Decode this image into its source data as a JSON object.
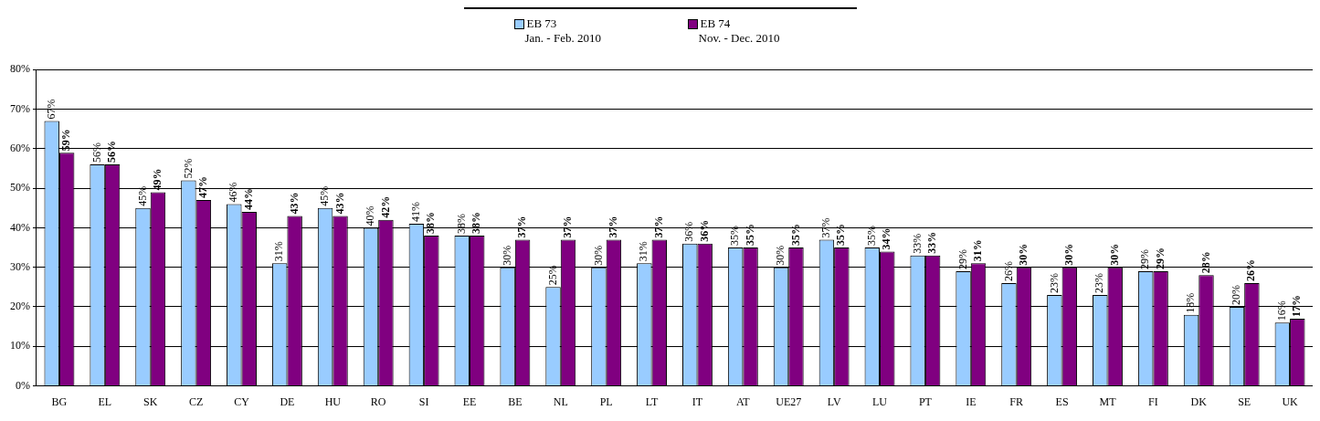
{
  "chart_data": {
    "type": "bar",
    "categories": [
      "BG",
      "EL",
      "SK",
      "CZ",
      "CY",
      "DE",
      "HU",
      "RO",
      "SI",
      "EE",
      "BE",
      "NL",
      "PL",
      "LT",
      "IT",
      "AT",
      "UE27",
      "LV",
      "LU",
      "PT",
      "IE",
      "FR",
      "ES",
      "MT",
      "FI",
      "DK",
      "SE",
      "UK"
    ],
    "series": [
      {
        "name": "EB 73",
        "color": "#99ccff",
        "values": [
          67,
          56,
          45,
          52,
          46,
          31,
          45,
          40,
          41,
          38,
          30,
          25,
          30,
          31,
          36,
          35,
          30,
          37,
          35,
          33,
          29,
          26,
          23,
          23,
          29,
          18,
          20,
          16
        ],
        "value_labels": [
          "67%",
          "56%",
          "45%",
          "52%",
          "46%",
          "31%",
          "45%",
          "40%",
          "41%",
          "38%",
          "30%",
          "25%",
          "30%",
          "31%",
          "36%",
          "35%",
          "30%",
          "37%",
          "35%",
          "33%",
          "29%",
          "26%",
          "23%",
          "23%",
          "29%",
          "18%",
          "20%",
          "16%"
        ]
      },
      {
        "name": "EB 74",
        "color": "#800080",
        "values": [
          59,
          56,
          49,
          47,
          44,
          43,
          43,
          42,
          38,
          38,
          37,
          37,
          37,
          37,
          36,
          35,
          35,
          35,
          34,
          33,
          31,
          30,
          30,
          30,
          29,
          28,
          26,
          17
        ],
        "value_labels": [
          "59%",
          "56%",
          "49%",
          "47%",
          "44%",
          "43%",
          "43%",
          "42%",
          "38%",
          "38%",
          "37%",
          "37%",
          "37%",
          "37%",
          "36%",
          "35%",
          "35%",
          "35%",
          "34%",
          "33%",
          "31%",
          "30%",
          "30%",
          "30%",
          "29%",
          "28%",
          "26%",
          "17%"
        ]
      }
    ],
    "annotations": [
      "Jan. - Feb. 2010",
      "Nov. - Dec. 2010"
    ],
    "ylim": [
      0,
      80
    ],
    "yticks": [
      {
        "value": 0,
        "label": "0%"
      },
      {
        "value": 10,
        "label": "10%"
      },
      {
        "value": 20,
        "label": "20%"
      },
      {
        "value": 30,
        "label": "30%"
      },
      {
        "value": 40,
        "label": "40%"
      },
      {
        "value": 50,
        "label": "50%"
      },
      {
        "value": 60,
        "label": "60%"
      },
      {
        "value": 70,
        "label": "70%"
      },
      {
        "value": 80,
        "label": "80%"
      }
    ],
    "grid": "y",
    "legend": "top"
  }
}
